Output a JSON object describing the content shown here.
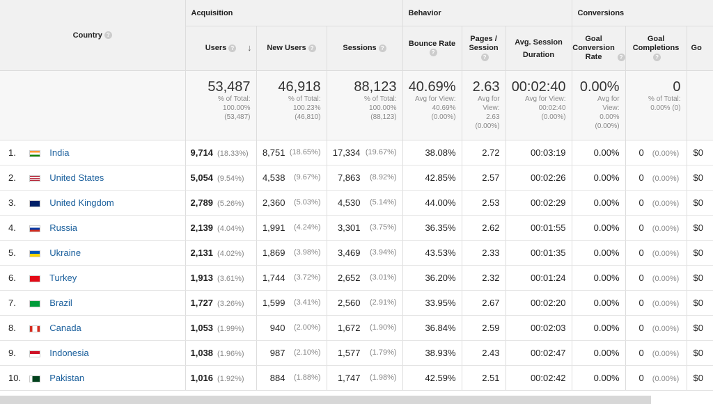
{
  "groups": {
    "acquisition": "Acquisition",
    "behavior": "Behavior",
    "conversions": "Conversions"
  },
  "columns": {
    "country": "Country",
    "users": "Users",
    "new_users": "New Users",
    "sessions": "Sessions",
    "bounce_rate": "Bounce Rate",
    "pages_session": "Pages / Session",
    "avg_session_duration": "Avg. Session Duration",
    "goal_conversion_rate": "Goal Conversion Rate",
    "goal_completions": "Goal Completions",
    "goal_value_partial": "Go"
  },
  "totals": {
    "users": "53,487",
    "users_sub": "% of Total: 100.00% (53,487)",
    "new_users": "46,918",
    "new_users_sub": "% of Total: 100.23% (46,810)",
    "sessions": "88,123",
    "sessions_sub": "% of Total: 100.00% (88,123)",
    "bounce_rate": "40.69%",
    "bounce_rate_sub": "Avg for View: 40.69% (0.00%)",
    "pages_session": "2.63",
    "pages_session_sub": "Avg for View: 2.63 (0.00%)",
    "duration": "00:02:40",
    "duration_sub": "Avg for View: 00:02:40 (0.00%)",
    "goal_rate": "0.00%",
    "goal_rate_sub": "Avg for View: 0.00% (0.00%)",
    "goal_completions": "0",
    "goal_completions_sub": "% of Total: 0.00% (0)"
  },
  "rows": [
    {
      "rank": "1.",
      "country": "India",
      "flag": "india",
      "users": "9,714",
      "users_pct": "(18.33%)",
      "new_users": "8,751",
      "new_pct": "(18.65%)",
      "sessions": "17,334",
      "sess_pct": "(19.67%)",
      "bounce": "38.08%",
      "pages": "2.72",
      "duration": "00:03:19",
      "goal_rate": "0.00%",
      "goal_comp": "0",
      "goal_comp_pct": "(0.00%)",
      "value": "$0"
    },
    {
      "rank": "2.",
      "country": "United States",
      "flag": "us",
      "users": "5,054",
      "users_pct": "(9.54%)",
      "new_users": "4,538",
      "new_pct": "(9.67%)",
      "sessions": "7,863",
      "sess_pct": "(8.92%)",
      "bounce": "42.85%",
      "pages": "2.57",
      "duration": "00:02:26",
      "goal_rate": "0.00%",
      "goal_comp": "0",
      "goal_comp_pct": "(0.00%)",
      "value": "$0"
    },
    {
      "rank": "3.",
      "country": "United Kingdom",
      "flag": "uk",
      "users": "2,789",
      "users_pct": "(5.26%)",
      "new_users": "2,360",
      "new_pct": "(5.03%)",
      "sessions": "4,530",
      "sess_pct": "(5.14%)",
      "bounce": "44.00%",
      "pages": "2.53",
      "duration": "00:02:29",
      "goal_rate": "0.00%",
      "goal_comp": "0",
      "goal_comp_pct": "(0.00%)",
      "value": "$0"
    },
    {
      "rank": "4.",
      "country": "Russia",
      "flag": "russia",
      "users": "2,139",
      "users_pct": "(4.04%)",
      "new_users": "1,991",
      "new_pct": "(4.24%)",
      "sessions": "3,301",
      "sess_pct": "(3.75%)",
      "bounce": "36.35%",
      "pages": "2.62",
      "duration": "00:01:55",
      "goal_rate": "0.00%",
      "goal_comp": "0",
      "goal_comp_pct": "(0.00%)",
      "value": "$0"
    },
    {
      "rank": "5.",
      "country": "Ukraine",
      "flag": "ukraine",
      "users": "2,131",
      "users_pct": "(4.02%)",
      "new_users": "1,869",
      "new_pct": "(3.98%)",
      "sessions": "3,469",
      "sess_pct": "(3.94%)",
      "bounce": "43.53%",
      "pages": "2.33",
      "duration": "00:01:35",
      "goal_rate": "0.00%",
      "goal_comp": "0",
      "goal_comp_pct": "(0.00%)",
      "value": "$0"
    },
    {
      "rank": "6.",
      "country": "Turkey",
      "flag": "turkey",
      "users": "1,913",
      "users_pct": "(3.61%)",
      "new_users": "1,744",
      "new_pct": "(3.72%)",
      "sessions": "2,652",
      "sess_pct": "(3.01%)",
      "bounce": "36.20%",
      "pages": "2.32",
      "duration": "00:01:24",
      "goal_rate": "0.00%",
      "goal_comp": "0",
      "goal_comp_pct": "(0.00%)",
      "value": "$0"
    },
    {
      "rank": "7.",
      "country": "Brazil",
      "flag": "brazil",
      "users": "1,727",
      "users_pct": "(3.26%)",
      "new_users": "1,599",
      "new_pct": "(3.41%)",
      "sessions": "2,560",
      "sess_pct": "(2.91%)",
      "bounce": "33.95%",
      "pages": "2.67",
      "duration": "00:02:20",
      "goal_rate": "0.00%",
      "goal_comp": "0",
      "goal_comp_pct": "(0.00%)",
      "value": "$0"
    },
    {
      "rank": "8.",
      "country": "Canada",
      "flag": "canada",
      "users": "1,053",
      "users_pct": "(1.99%)",
      "new_users": "940",
      "new_pct": "(2.00%)",
      "sessions": "1,672",
      "sess_pct": "(1.90%)",
      "bounce": "36.84%",
      "pages": "2.59",
      "duration": "00:02:03",
      "goal_rate": "0.00%",
      "goal_comp": "0",
      "goal_comp_pct": "(0.00%)",
      "value": "$0"
    },
    {
      "rank": "9.",
      "country": "Indonesia",
      "flag": "indonesia",
      "users": "1,038",
      "users_pct": "(1.96%)",
      "new_users": "987",
      "new_pct": "(2.10%)",
      "sessions": "1,577",
      "sess_pct": "(1.79%)",
      "bounce": "38.93%",
      "pages": "2.43",
      "duration": "00:02:47",
      "goal_rate": "0.00%",
      "goal_comp": "0",
      "goal_comp_pct": "(0.00%)",
      "value": "$0"
    },
    {
      "rank": "10.",
      "country": "Pakistan",
      "flag": "pakistan",
      "users": "1,016",
      "users_pct": "(1.92%)",
      "new_users": "884",
      "new_pct": "(1.88%)",
      "sessions": "1,747",
      "sess_pct": "(1.98%)",
      "bounce": "42.59%",
      "pages": "2.51",
      "duration": "00:02:42",
      "goal_rate": "0.00%",
      "goal_comp": "0",
      "goal_comp_pct": "(0.00%)",
      "value": "$0"
    }
  ],
  "icons": {
    "help": "help-icon",
    "sort": "sort-desc-arrow-icon"
  },
  "colors": {
    "link": "#1a5f9c",
    "header_bg": "#f1f1f1",
    "muted": "#888888"
  }
}
